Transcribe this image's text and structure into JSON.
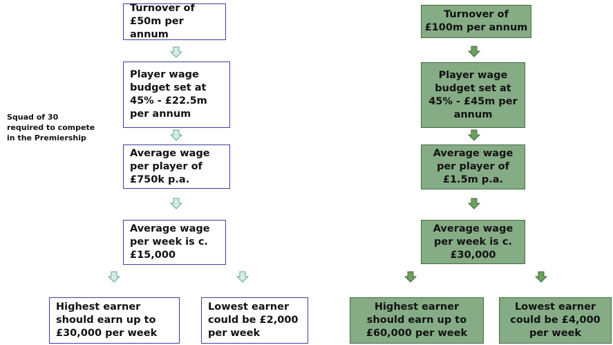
{
  "note": {
    "lines": [
      "Squad of 30",
      "required to compete",
      "in the Premiership"
    ]
  },
  "left_column": {
    "boxes": [
      {
        "lines": [
          "Turnover of",
          "£50m per annum"
        ]
      },
      {
        "lines": [
          "Player wage",
          "budget set at",
          "45% - £22.5m",
          "per annum"
        ]
      },
      {
        "lines": [
          "Average wage",
          "per player of",
          "£750k p.a."
        ]
      },
      {
        "lines": [
          "Average wage",
          "per week is c.",
          "£15,000"
        ]
      },
      {
        "lines": [
          "Highest earner",
          "should earn up to",
          "£30,000 per week"
        ]
      },
      {
        "lines": [
          "Lowest earner",
          "could be £2,000",
          "per week"
        ]
      }
    ]
  },
  "right_column": {
    "boxes": [
      {
        "lines": [
          "Turnover of",
          "£100m per annum"
        ]
      },
      {
        "lines": [
          "Player wage",
          "budget set at",
          "45% - £45m per",
          "annum"
        ]
      },
      {
        "lines": [
          "Average wage",
          "per player of",
          "£1.5m p.a."
        ]
      },
      {
        "lines": [
          "Average wage",
          "per week is c.",
          "£30,000"
        ]
      },
      {
        "lines": [
          "Highest earner",
          "should earn up to",
          "£60,000 per week"
        ]
      },
      {
        "lines": [
          "Lowest earner",
          "could be £4,000",
          "per week"
        ]
      }
    ]
  }
}
